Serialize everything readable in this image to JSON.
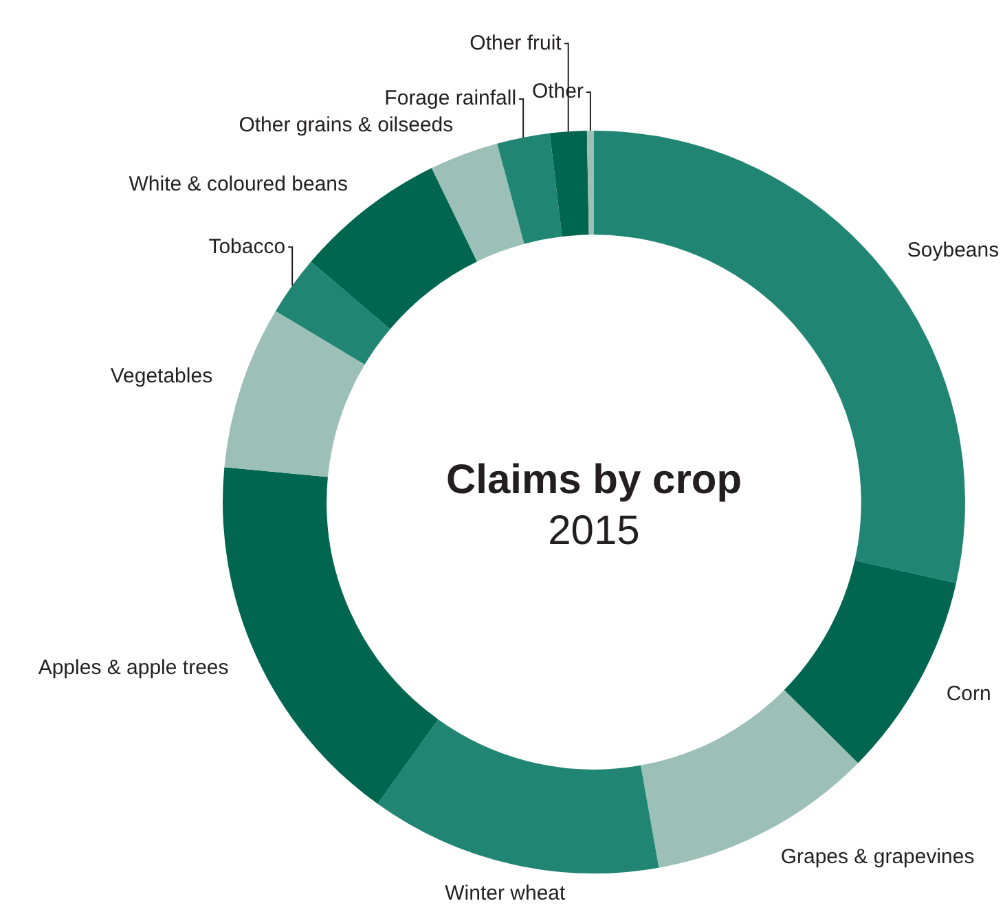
{
  "chart_data": {
    "type": "donut",
    "title": "Claims by crop",
    "subtitle": "2015",
    "categories": [
      "Soybeans",
      "Corn",
      "Grapes & grapevines",
      "Winter wheat",
      "Apples & apple trees",
      "Vegetables",
      "Tobacco",
      "White & coloured beans",
      "Other grains & oilseeds",
      "Forage rainfall",
      "Other fruit",
      "Other"
    ],
    "values": [
      28.5,
      8.9,
      9.8,
      12.7,
      16.6,
      7.1,
      2.6,
      6.6,
      3.0,
      2.3,
      1.6,
      0.3
    ],
    "colors": [
      "#218573",
      "#00664f",
      "#9cc0b7",
      "#218573",
      "#00664f",
      "#9cc0b7",
      "#218573",
      "#00664f",
      "#9cc0b7",
      "#218573",
      "#00664f",
      "#9cc0b7"
    ]
  }
}
